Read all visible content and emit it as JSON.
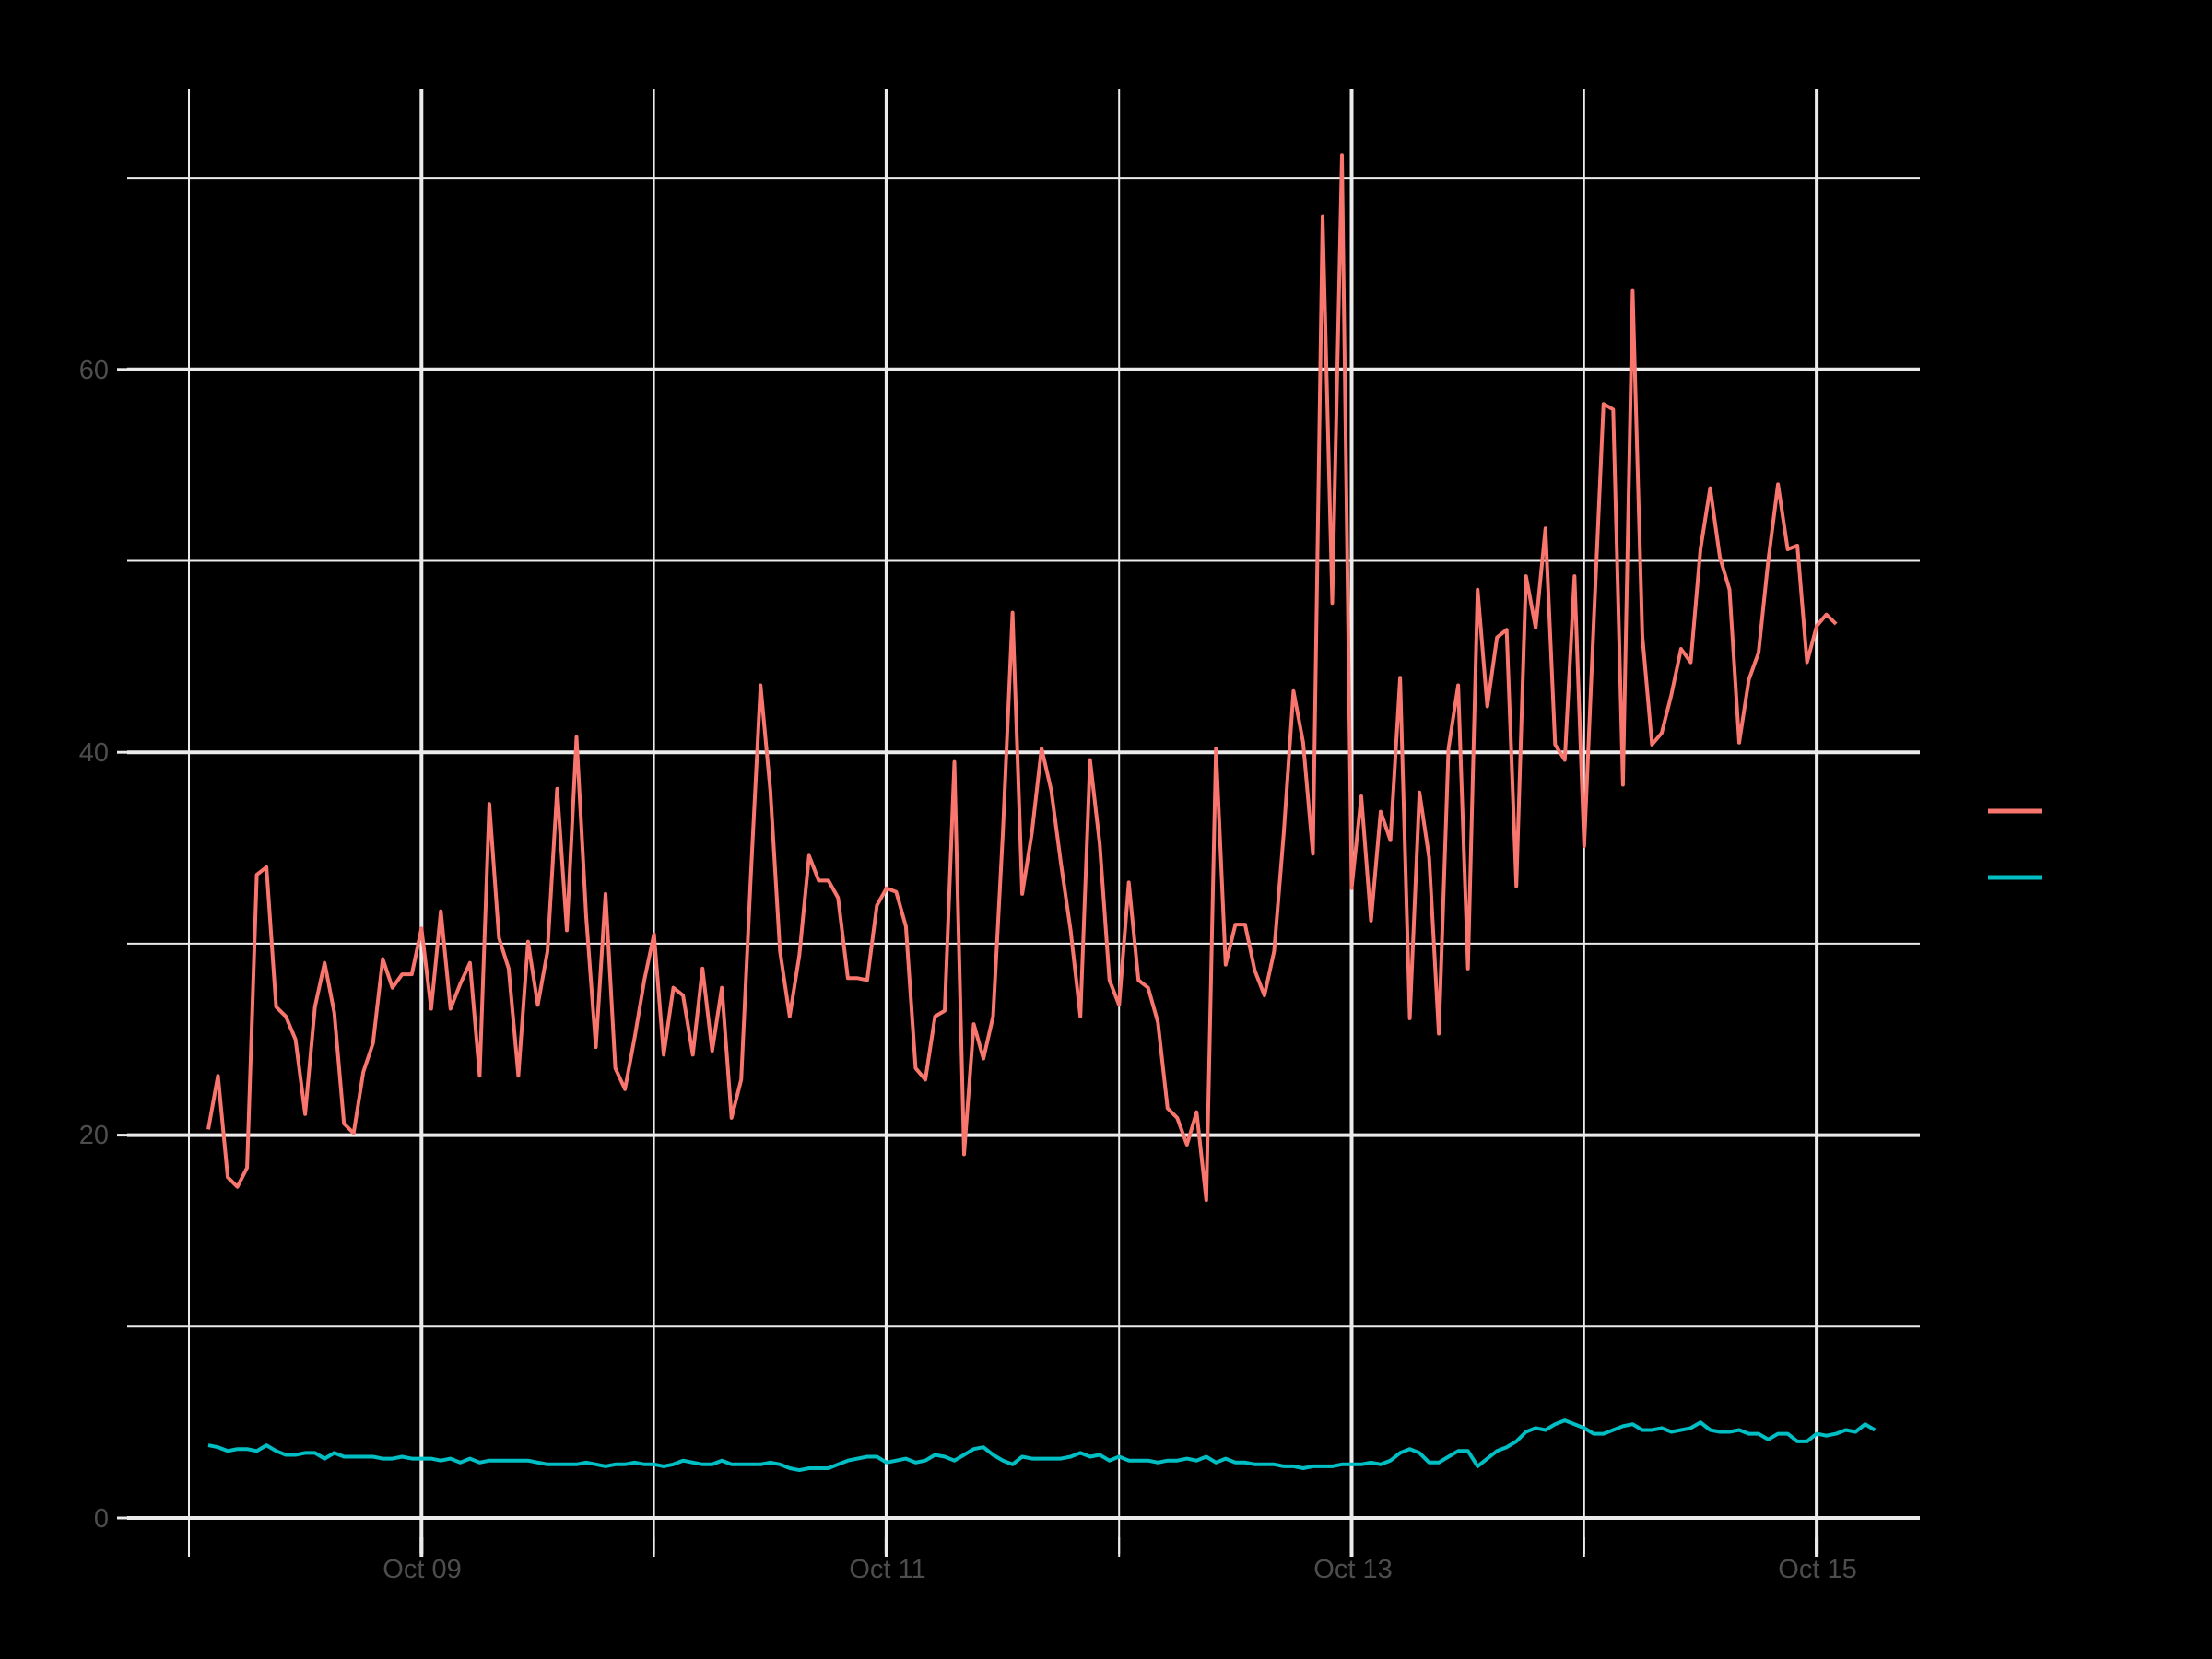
{
  "chart_data": {
    "type": "line",
    "title": "",
    "xlabel": "",
    "ylabel": "",
    "ylim": [
      0,
      72
    ],
    "y_major_ticks": [
      0,
      20,
      40,
      60
    ],
    "y_minor_ticks": [
      10,
      30,
      50,
      70
    ],
    "x_tick_labels": [
      "Oct 09",
      "Oct 11",
      "Oct 13",
      "Oct 15"
    ],
    "x_start": "Oct 08 02:00",
    "x_step": "1 hour",
    "grid": true,
    "legend_position": "right",
    "series": [
      {
        "name": "",
        "color": "#F8766D",
        "values": [
          20.3,
          23.1,
          17.8,
          17.3,
          18.3,
          33.6,
          34.0,
          26.7,
          26.2,
          25.0,
          21.1,
          26.7,
          29.0,
          26.4,
          20.6,
          20.1,
          23.3,
          24.8,
          29.2,
          27.7,
          28.4,
          28.4,
          30.8,
          26.6,
          31.7,
          26.6,
          27.9,
          29.0,
          23.1,
          37.3,
          30.3,
          28.7,
          23.1,
          30.1,
          26.8,
          29.6,
          38.1,
          30.7,
          40.8,
          31.4,
          24.6,
          32.6,
          23.5,
          22.4,
          25.1,
          28.1,
          30.5,
          24.2,
          27.7,
          27.3,
          24.2,
          28.7,
          24.4,
          27.7,
          20.9,
          22.9,
          33.6,
          43.5,
          38.0,
          29.6,
          26.2,
          29.4,
          34.6,
          33.3,
          33.3,
          32.4,
          28.2,
          28.2,
          28.1,
          32.0,
          32.9,
          32.7,
          30.9,
          23.5,
          22.9,
          26.2,
          26.5,
          39.5,
          19.0,
          25.8,
          24.0,
          26.2,
          35.8,
          47.3,
          32.6,
          35.8,
          40.2,
          38.0,
          34.2,
          30.7,
          26.2,
          39.6,
          35.2,
          28.1,
          26.8,
          33.2,
          28.1,
          27.7,
          25.9,
          21.4,
          20.9,
          19.5,
          21.2,
          16.6,
          40.2,
          28.9,
          31.0,
          31.0,
          28.6,
          27.3,
          29.6,
          35.8,
          43.2,
          40.5,
          34.7,
          68.0,
          47.8,
          71.2,
          32.9,
          37.7,
          31.2,
          36.9,
          35.4,
          43.9,
          26.1,
          37.9,
          34.5,
          25.3,
          40.2,
          43.5,
          28.7,
          48.5,
          42.4,
          46.0,
          46.4,
          33.0,
          49.2,
          46.5,
          51.7,
          40.4,
          39.6,
          49.2,
          35.1,
          46.9,
          58.2,
          57.9,
          38.3,
          64.1,
          46.1,
          40.4,
          41.0,
          43.0,
          45.4,
          44.7,
          50.6,
          53.8,
          50.2,
          48.5,
          40.5,
          43.8,
          45.2,
          50.0,
          54.0,
          50.6,
          50.8,
          44.7,
          46.6,
          47.2,
          46.7
        ]
      },
      {
        "name": "",
        "color": "#00BFC4",
        "values": [
          3.8,
          3.7,
          3.5,
          3.6,
          3.6,
          3.5,
          3.8,
          3.5,
          3.3,
          3.3,
          3.4,
          3.4,
          3.1,
          3.4,
          3.2,
          3.2,
          3.2,
          3.2,
          3.1,
          3.1,
          3.2,
          3.1,
          3.1,
          3.1,
          3.0,
          3.1,
          2.9,
          3.1,
          2.9,
          3.0,
          3.0,
          3.0,
          3.0,
          3.0,
          2.9,
          2.8,
          2.8,
          2.8,
          2.8,
          2.9,
          2.8,
          2.7,
          2.8,
          2.8,
          2.9,
          2.8,
          2.8,
          2.7,
          2.8,
          3.0,
          2.9,
          2.8,
          2.8,
          3.0,
          2.8,
          2.8,
          2.8,
          2.8,
          2.9,
          2.8,
          2.6,
          2.5,
          2.6,
          2.6,
          2.6,
          2.8,
          3.0,
          3.1,
          3.2,
          3.2,
          2.9,
          3.0,
          3.1,
          2.9,
          3.0,
          3.3,
          3.2,
          3.0,
          3.3,
          3.6,
          3.7,
          3.3,
          3.0,
          2.8,
          3.2,
          3.1,
          3.1,
          3.1,
          3.1,
          3.2,
          3.4,
          3.2,
          3.3,
          3.0,
          3.2,
          3.0,
          3.0,
          3.0,
          2.9,
          3.0,
          3.0,
          3.1,
          3.0,
          3.2,
          2.9,
          3.1,
          2.9,
          2.9,
          2.8,
          2.8,
          2.8,
          2.7,
          2.7,
          2.6,
          2.7,
          2.7,
          2.7,
          2.8,
          2.8,
          2.8,
          2.9,
          2.8,
          3.0,
          3.4,
          3.6,
          3.4,
          2.9,
          2.9,
          3.2,
          3.5,
          3.5,
          2.7,
          3.1,
          3.5,
          3.7,
          4.0,
          4.5,
          4.7,
          4.6,
          4.9,
          5.1,
          4.9,
          4.7,
          4.4,
          4.4,
          4.6,
          4.8,
          4.9,
          4.6,
          4.6,
          4.7,
          4.5,
          4.6,
          4.7,
          5.0,
          4.6,
          4.5,
          4.5,
          4.6,
          4.4,
          4.4,
          4.1,
          4.4,
          4.4,
          4.0,
          4.0,
          4.4,
          4.3,
          4.4,
          4.6,
          4.5,
          4.9,
          4.6
        ]
      }
    ]
  },
  "legend": {
    "title": "",
    "items": [
      {
        "label": "",
        "color": "#F8766D"
      },
      {
        "label": "",
        "color": "#00BFC4"
      }
    ]
  },
  "axes": {
    "y_labels": [
      "0",
      "20",
      "40",
      "60"
    ],
    "x_labels": [
      "Oct 09",
      "Oct 11",
      "Oct 13",
      "Oct 15"
    ]
  }
}
